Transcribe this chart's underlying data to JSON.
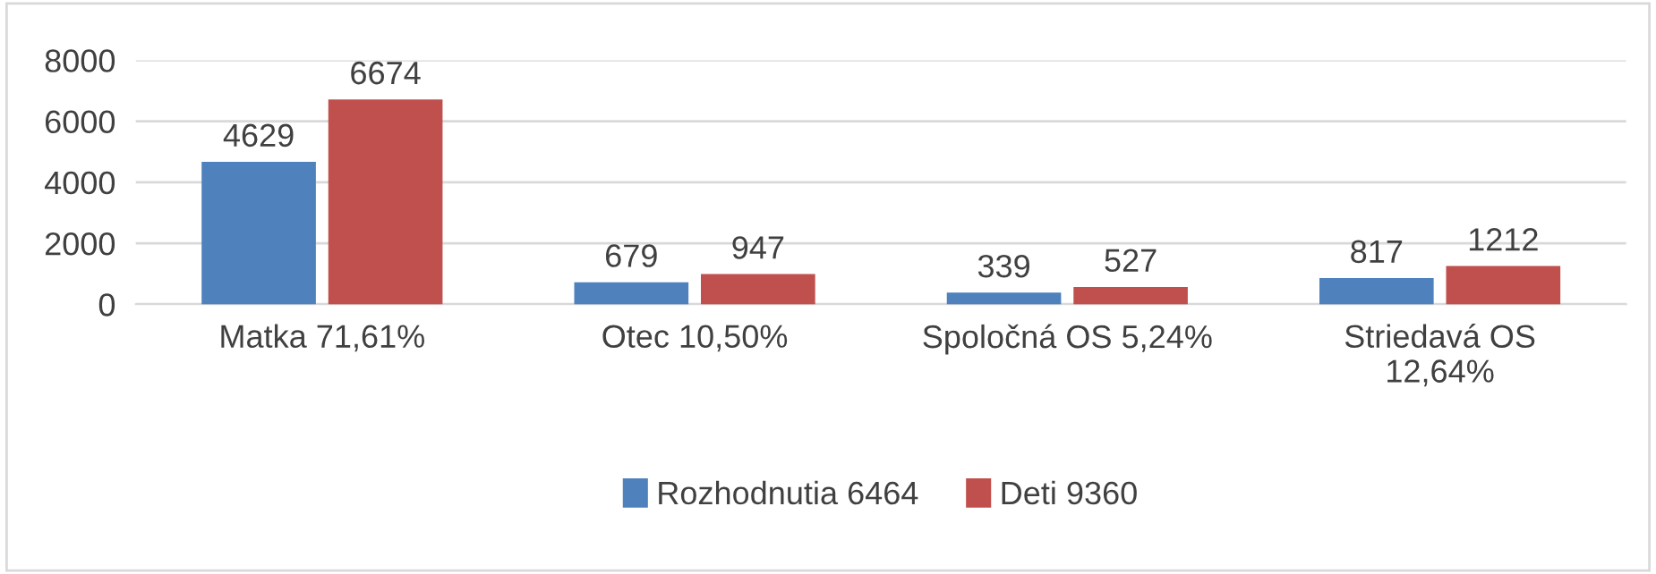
{
  "chart_data": {
    "type": "bar",
    "categories": [
      "Matka 71,61%",
      "Otec 10,50%",
      "Spoločná OS 5,24%",
      "Striedavá OS\n12,64%"
    ],
    "series": [
      {
        "name": "Rozhodnutia 6464",
        "color": "#4f81bd",
        "values": [
          4629,
          679,
          339,
          817
        ]
      },
      {
        "name": "Deti 9360",
        "color": "#c0504d",
        "values": [
          6674,
          947,
          527,
          1212
        ]
      }
    ],
    "ylim": [
      0,
      8000
    ],
    "yticks": [
      0,
      2000,
      4000,
      6000,
      8000
    ],
    "grid": "y",
    "legend": "bottom",
    "data_labels": true
  }
}
